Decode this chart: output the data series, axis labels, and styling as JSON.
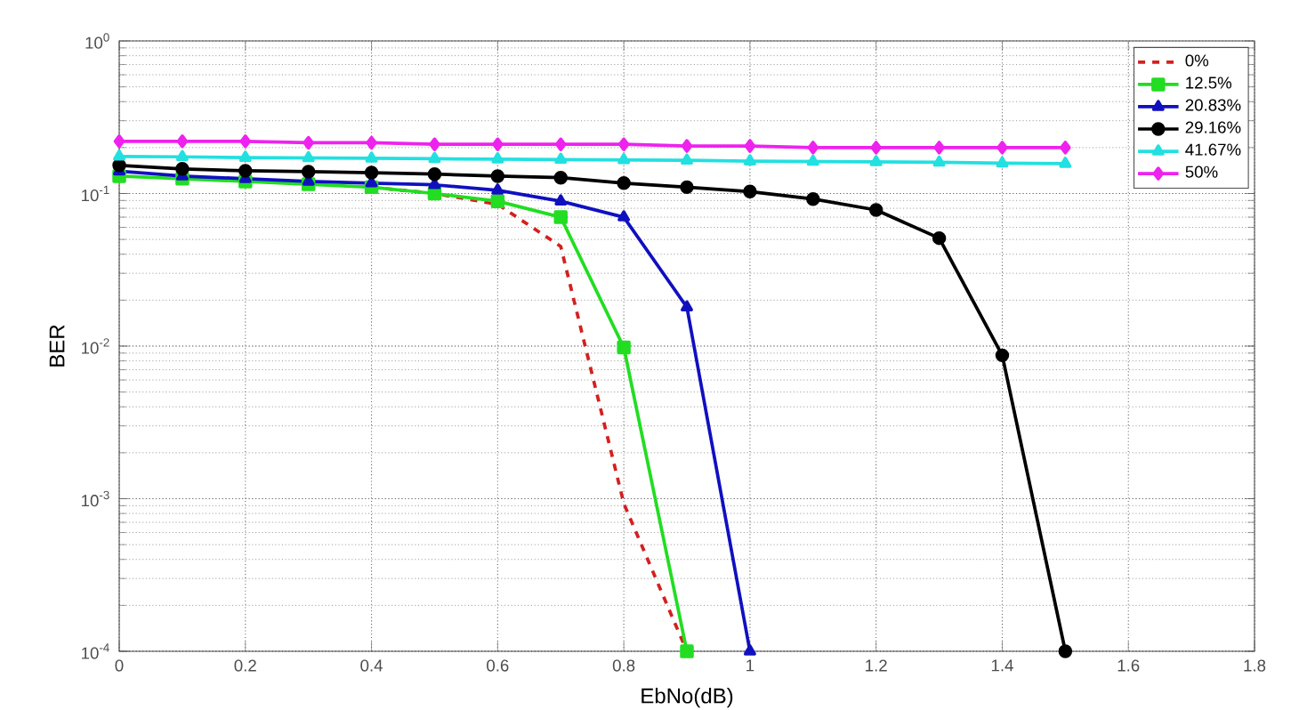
{
  "chart_data": {
    "type": "line",
    "xlabel": "EbNo(dB)",
    "ylabel": "BER",
    "log": "y",
    "grid": true,
    "legend": "top right",
    "xlim": [
      0,
      1.8
    ],
    "xticks": [
      0,
      0.2,
      0.4,
      0.6,
      0.8,
      1,
      1.2,
      1.4,
      1.6,
      1.8
    ],
    "ylim": [
      0.0001,
      1
    ],
    "yticks": [
      {
        "value": 0.0001,
        "label": "10$^{-4}$"
      },
      {
        "value": 0.001,
        "label": "10$^{-3}$"
      },
      {
        "value": 0.01,
        "label": "10$^{-2}$"
      },
      {
        "value": 0.1,
        "label": "10$^{-1}$"
      },
      {
        "value": 1,
        "label": "10$^{0}$"
      }
    ],
    "series": [
      {
        "name": "0%",
        "color": "#d42020",
        "line_style": "dashed",
        "marker": "none",
        "x": [
          0.4,
          0.5,
          0.6,
          0.7,
          0.8,
          0.9
        ],
        "values": [
          0.11,
          0.1,
          0.085,
          0.045,
          0.00093,
          0.0001
        ]
      },
      {
        "name": "12.5%",
        "color": "#22dd22",
        "line_style": "solid",
        "marker": "square",
        "x": [
          0,
          0.1,
          0.2,
          0.3,
          0.4,
          0.5,
          0.6,
          0.7,
          0.8,
          0.9
        ],
        "values": [
          0.13,
          0.125,
          0.12,
          0.115,
          0.11,
          0.1,
          0.089,
          0.07,
          0.0098,
          0.0001
        ]
      },
      {
        "name": "20.83%",
        "color": "#1010c0",
        "line_style": "solid",
        "marker": "triangle",
        "x": [
          0,
          0.1,
          0.2,
          0.3,
          0.4,
          0.5,
          0.6,
          0.7,
          0.8,
          0.9,
          1.0
        ],
        "values": [
          0.14,
          0.13,
          0.125,
          0.12,
          0.117,
          0.114,
          0.105,
          0.089,
          0.07,
          0.018,
          0.0001
        ]
      },
      {
        "name": "29.16%",
        "color": "#000000",
        "line_style": "solid",
        "marker": "circle",
        "x": [
          0,
          0.1,
          0.2,
          0.3,
          0.4,
          0.5,
          0.6,
          0.7,
          0.8,
          0.9,
          1.0,
          1.1,
          1.2,
          1.3,
          1.4,
          1.5
        ],
        "values": [
          0.153,
          0.145,
          0.141,
          0.139,
          0.137,
          0.134,
          0.13,
          0.127,
          0.117,
          0.11,
          0.103,
          0.092,
          0.078,
          0.051,
          0.0087,
          0.0001
        ]
      },
      {
        "name": "41.67%",
        "color": "#22e0e0",
        "line_style": "solid",
        "marker": "triangle",
        "x": [
          0,
          0.1,
          0.2,
          0.3,
          0.4,
          0.5,
          0.6,
          0.7,
          0.8,
          0.9,
          1.0,
          1.1,
          1.2,
          1.3,
          1.4,
          1.5
        ],
        "values": [
          0.175,
          0.174,
          0.172,
          0.171,
          0.17,
          0.169,
          0.168,
          0.167,
          0.166,
          0.165,
          0.163,
          0.162,
          0.161,
          0.16,
          0.158,
          0.157
        ]
      },
      {
        "name": "50%",
        "color": "#ee22ee",
        "line_style": "solid",
        "marker": "diamond",
        "x": [
          0,
          0.1,
          0.2,
          0.3,
          0.4,
          0.5,
          0.6,
          0.7,
          0.8,
          0.9,
          1.0,
          1.1,
          1.2,
          1.3,
          1.4,
          1.5
        ],
        "values": [
          0.22,
          0.22,
          0.22,
          0.215,
          0.215,
          0.21,
          0.21,
          0.21,
          0.21,
          0.205,
          0.205,
          0.2,
          0.2,
          0.2,
          0.2,
          0.2
        ]
      }
    ]
  }
}
